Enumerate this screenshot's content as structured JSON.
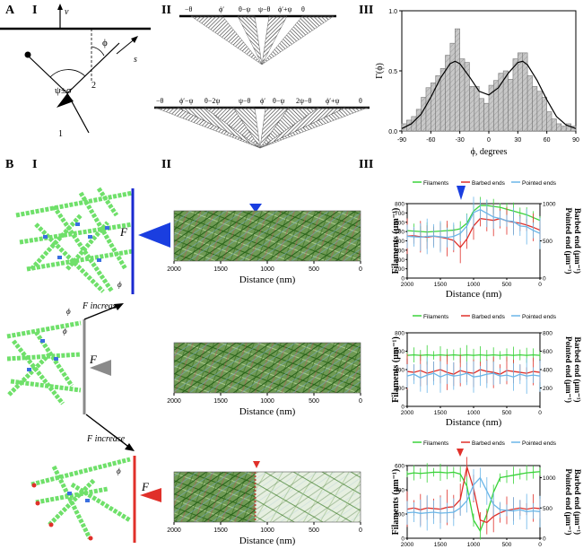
{
  "panel_labels": {
    "A": "A",
    "A_I": "I",
    "A_II": "II",
    "A_III": "III",
    "B": "B",
    "B_I": "I",
    "B_II": "II",
    "B_III": "III"
  },
  "A_I": {
    "v": "v",
    "s": "s",
    "phi": "ϕ",
    "psi": "ψ±σ",
    "n1": "1",
    "n2": "2"
  },
  "A_II": {
    "top_labels": [
      "−θ",
      "ϕ′",
      "θ−ψ",
      "ψ−θ",
      "ϕ′+ψ",
      "θ"
    ],
    "bottom_labels": [
      "−θ",
      "ϕ′−ψ",
      "θ−2ψ",
      "ψ−θ",
      "ϕ′",
      "θ−ψ",
      "2ψ−θ",
      "ϕ′+ψ",
      "θ"
    ]
  },
  "force_labels": {
    "F": "F",
    "F_increase": "F increase",
    "phi_sym": "ϕ"
  },
  "distance_ticks": [
    "2000",
    "1500",
    "1000",
    "500",
    "0"
  ],
  "distance_label": "Distance (nm)",
  "legend": {
    "filaments": "Filaments",
    "barbed": "Barbed ends",
    "pointed": "Pointed ends"
  },
  "ylabels": {
    "left": "Filaments (μm⁻¹)",
    "right_pointed": "Pointed end (μm⁻¹)",
    "right_barbed": "Barbed end (μm⁻¹)"
  },
  "colors": {
    "green": "#3ad33a",
    "red": "#e0302a",
    "blue": "#2f6fe0",
    "lightblue": "#6ab6e8",
    "gray": "#8a8a8a"
  },
  "chart_data": [
    {
      "type": "bar",
      "panel": "A-III",
      "xlabel": "ϕ, degrees",
      "ylabel": "Γ(ϕ)",
      "xlim": [
        -90,
        90
      ],
      "ylim": [
        0,
        1.0
      ],
      "xticks": [
        "-90",
        "-60",
        "-30",
        "0",
        "30",
        "60",
        "90"
      ],
      "yticks": [
        "0.0",
        "0.5",
        "1.0"
      ],
      "categories": [
        -87.5,
        -82.5,
        -77.5,
        -72.5,
        -67.5,
        -62.5,
        -57.5,
        -52.5,
        -47.5,
        -42.5,
        -37.5,
        -32.5,
        -27.5,
        -22.5,
        -17.5,
        -12.5,
        -7.5,
        -2.5,
        2.5,
        7.5,
        12.5,
        17.5,
        22.5,
        27.5,
        32.5,
        37.5,
        42.5,
        47.5,
        52.5,
        57.5,
        62.5,
        67.5,
        72.5,
        77.5,
        82.5,
        87.5
      ],
      "values": [
        0.06,
        0.09,
        0.12,
        0.18,
        0.28,
        0.36,
        0.4,
        0.46,
        0.52,
        0.63,
        0.73,
        0.85,
        0.6,
        0.57,
        0.37,
        0.37,
        0.27,
        0.23,
        0.38,
        0.42,
        0.48,
        0.5,
        0.43,
        0.6,
        0.65,
        0.65,
        0.46,
        0.37,
        0.33,
        0.28,
        0.16,
        0.1,
        0.06,
        0.04,
        0.06,
        0.04
      ],
      "fit": {
        "type": "line",
        "x": [
          -90,
          -80,
          -70,
          -60,
          -50,
          -40,
          -35,
          -30,
          -20,
          -10,
          0,
          10,
          20,
          30,
          35,
          40,
          50,
          60,
          70,
          80,
          90
        ],
        "y": [
          0.02,
          0.06,
          0.14,
          0.28,
          0.44,
          0.56,
          0.58,
          0.56,
          0.45,
          0.33,
          0.3,
          0.36,
          0.48,
          0.57,
          0.58,
          0.55,
          0.42,
          0.26,
          0.12,
          0.05,
          0.02
        ]
      }
    },
    {
      "type": "line",
      "panel": "B-III-top",
      "x": [
        2000,
        1900,
        1800,
        1700,
        1600,
        1500,
        1400,
        1300,
        1200,
        1100,
        1000,
        900,
        800,
        700,
        600,
        500,
        400,
        300,
        200,
        100,
        0
      ],
      "xlim": [
        2000,
        0
      ],
      "left_ylim": [
        0,
        800
      ],
      "left_ticks": [
        "0",
        "100",
        "200",
        "300",
        "400",
        "500",
        "600",
        "700",
        "800"
      ],
      "right_ylim": [
        0,
        1000
      ],
      "right_ticks": [
        "0",
        "500",
        "1000"
      ],
      "series": [
        {
          "name": "Filaments",
          "axis": "left",
          "values": [
            510,
            505,
            500,
            495,
            500,
            505,
            510,
            515,
            530,
            590,
            720,
            780,
            780,
            770,
            760,
            740,
            720,
            700,
            680,
            650,
            620
          ]
        },
        {
          "name": "Barbed ends",
          "axis": "left",
          "values": [
            450,
            455,
            445,
            440,
            450,
            440,
            425,
            405,
            330,
            420,
            560,
            640,
            630,
            620,
            640,
            615,
            600,
            590,
            570,
            545,
            515
          ]
        },
        {
          "name": "Pointed ends",
          "axis": "right",
          "values": [
            560,
            555,
            550,
            560,
            565,
            555,
            545,
            560,
            600,
            700,
            880,
            920,
            870,
            820,
            800,
            770,
            760,
            700,
            690,
            640,
            600
          ]
        }
      ]
    },
    {
      "type": "line",
      "panel": "B-III-middle",
      "x": [
        2000,
        1900,
        1800,
        1700,
        1600,
        1500,
        1400,
        1300,
        1200,
        1100,
        1000,
        900,
        800,
        700,
        600,
        500,
        400,
        300,
        200,
        100,
        0
      ],
      "xlim": [
        2000,
        0
      ],
      "left_ylim": [
        0,
        800
      ],
      "left_ticks": [
        "0",
        "200",
        "400",
        "600",
        "800"
      ],
      "right_ylim": [
        0,
        800
      ],
      "right_ticks": [
        "200",
        "400",
        "600",
        "800"
      ],
      "series": [
        {
          "name": "Filaments",
          "axis": "left",
          "values": [
            555,
            560,
            555,
            560,
            555,
            560,
            555,
            560,
            555,
            560,
            555,
            560,
            555,
            560,
            555,
            560,
            555,
            560,
            555,
            560,
            555
          ]
        },
        {
          "name": "Barbed ends",
          "axis": "left",
          "values": [
            380,
            370,
            390,
            360,
            380,
            400,
            370,
            350,
            390,
            370,
            360,
            400,
            380,
            370,
            350,
            390,
            380,
            370,
            360,
            380,
            370
          ]
        },
        {
          "name": "Pointed ends",
          "axis": "right",
          "values": [
            330,
            350,
            310,
            340,
            360,
            320,
            350,
            330,
            340,
            360,
            320,
            330,
            350,
            360,
            330,
            340,
            320,
            350,
            330,
            340,
            330
          ]
        }
      ]
    },
    {
      "type": "line",
      "panel": "B-III-bottom",
      "x": [
        2000,
        1900,
        1800,
        1700,
        1600,
        1500,
        1400,
        1300,
        1200,
        1100,
        1000,
        900,
        800,
        700,
        600,
        500,
        400,
        300,
        200,
        100,
        0
      ],
      "xlim": [
        2000,
        0
      ],
      "left_ylim": [
        0,
        600
      ],
      "left_ticks": [
        "0",
        "200",
        "400",
        "600"
      ],
      "right_ylim": [
        0,
        1200
      ],
      "right_ticks": [
        "0",
        "500",
        "1000"
      ],
      "series": [
        {
          "name": "Filaments",
          "axis": "left",
          "values": [
            530,
            540,
            535,
            540,
            545,
            545,
            540,
            545,
            530,
            430,
            150,
            60,
            200,
            380,
            500,
            510,
            520,
            530,
            540,
            545,
            550
          ]
        },
        {
          "name": "Barbed ends",
          "axis": "left",
          "values": [
            240,
            250,
            235,
            250,
            245,
            240,
            255,
            260,
            320,
            590,
            410,
            150,
            130,
            180,
            210,
            230,
            240,
            250,
            240,
            250,
            245
          ]
        },
        {
          "name": "Pointed ends",
          "axis": "right",
          "values": [
            420,
            430,
            410,
            420,
            430,
            415,
            420,
            430,
            500,
            620,
            880,
            1000,
            780,
            560,
            470,
            460,
            450,
            470,
            440,
            450,
            440
          ]
        }
      ]
    }
  ]
}
